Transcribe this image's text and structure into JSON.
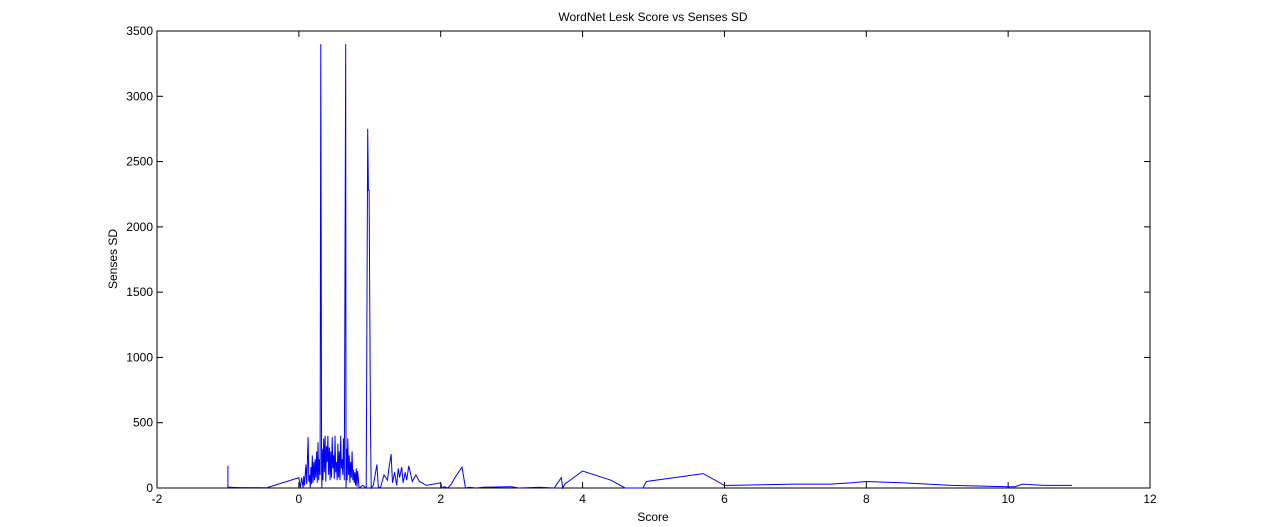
{
  "chart_data": {
    "type": "line",
    "title": "WordNet Lesk Score vs Senses SD",
    "xlabel": "Score",
    "ylabel": "Senses SD",
    "xlim": [
      -2,
      12
    ],
    "ylim": [
      0,
      3500
    ],
    "xticks": [
      -2,
      0,
      2,
      4,
      6,
      8,
      10,
      12
    ],
    "yticks": [
      0,
      500,
      1000,
      1500,
      2000,
      2500,
      3000,
      3500
    ],
    "grid": false,
    "line_color": "#0000ff",
    "series": [
      {
        "x": [
          -1.0,
          -1.0,
          -0.98,
          -0.8,
          -0.6,
          -0.45,
          0.0,
          0.02,
          0.04,
          0.06,
          0.07,
          0.08,
          0.1,
          0.11,
          0.13,
          0.14,
          0.15,
          0.16,
          0.17,
          0.18,
          0.19,
          0.2,
          0.21,
          0.22,
          0.23,
          0.24,
          0.25,
          0.26,
          0.27,
          0.28,
          0.29,
          0.3,
          0.31,
          0.32,
          0.325,
          0.33,
          0.34,
          0.35,
          0.36,
          0.37,
          0.38,
          0.39,
          0.4,
          0.41,
          0.42,
          0.43,
          0.44,
          0.45,
          0.46,
          0.47,
          0.48,
          0.49,
          0.5,
          0.51,
          0.52,
          0.53,
          0.54,
          0.55,
          0.56,
          0.57,
          0.58,
          0.59,
          0.6,
          0.61,
          0.62,
          0.63,
          0.64,
          0.65,
          0.66,
          0.665,
          0.67,
          0.675,
          0.68,
          0.69,
          0.7,
          0.71,
          0.72,
          0.73,
          0.74,
          0.75,
          0.76,
          0.77,
          0.78,
          0.79,
          0.8,
          0.81,
          0.82,
          0.83,
          0.85,
          0.9,
          0.95,
          0.97,
          0.98,
          0.99,
          1.0,
          1.01,
          1.02,
          1.05,
          1.1,
          1.12,
          1.15,
          1.2,
          1.25,
          1.27,
          1.3,
          1.32,
          1.35,
          1.38,
          1.4,
          1.42,
          1.45,
          1.47,
          1.5,
          1.52,
          1.55,
          1.6,
          1.65,
          1.7,
          1.8,
          2.0,
          2.02,
          2.05,
          2.1,
          2.15,
          2.2,
          2.3,
          2.35,
          2.4,
          2.5,
          2.6,
          3.0,
          3.1,
          3.4,
          3.6,
          3.7,
          3.72,
          3.75,
          4.0,
          4.4,
          4.6,
          4.8,
          4.85,
          4.9,
          5.7,
          6.0,
          6.1,
          7.0,
          7.5,
          7.8,
          8.0,
          8.5,
          9.2,
          10.0,
          10.1,
          10.2,
          10.5,
          10.9
        ],
        "y": [
          170,
          5,
          5,
          3,
          3,
          2,
          80,
          0,
          80,
          0,
          90,
          20,
          180,
          30,
          390,
          50,
          100,
          0,
          160,
          30,
          250,
          40,
          200,
          60,
          220,
          80,
          280,
          40,
          350,
          60,
          220,
          100,
          3400,
          120,
          0,
          300,
          60,
          380,
          120,
          400,
          50,
          320,
          200,
          400,
          100,
          310,
          60,
          280,
          80,
          390,
          150,
          250,
          70,
          400,
          120,
          200,
          60,
          340,
          80,
          280,
          60,
          400,
          150,
          220,
          100,
          380,
          60,
          1700,
          3400,
          0,
          120,
          300,
          60,
          380,
          100,
          250,
          40,
          200,
          80,
          280,
          60,
          140,
          40,
          120,
          20,
          150,
          10,
          130,
          0,
          20,
          0,
          2750,
          2280,
          2280,
          1350,
          440,
          0,
          20,
          180,
          10,
          0,
          100,
          60,
          150,
          260,
          40,
          120,
          20,
          150,
          80,
          160,
          40,
          120,
          60,
          170,
          50,
          100,
          50,
          20,
          40,
          0,
          10,
          0,
          30,
          80,
          160,
          0,
          5,
          0,
          5,
          10,
          0,
          5,
          0,
          80,
          0,
          30,
          130,
          60,
          0,
          0,
          0,
          50,
          110,
          20,
          20,
          30,
          30,
          40,
          50,
          40,
          20,
          10,
          10,
          30,
          20,
          20
        ]
      }
    ]
  }
}
